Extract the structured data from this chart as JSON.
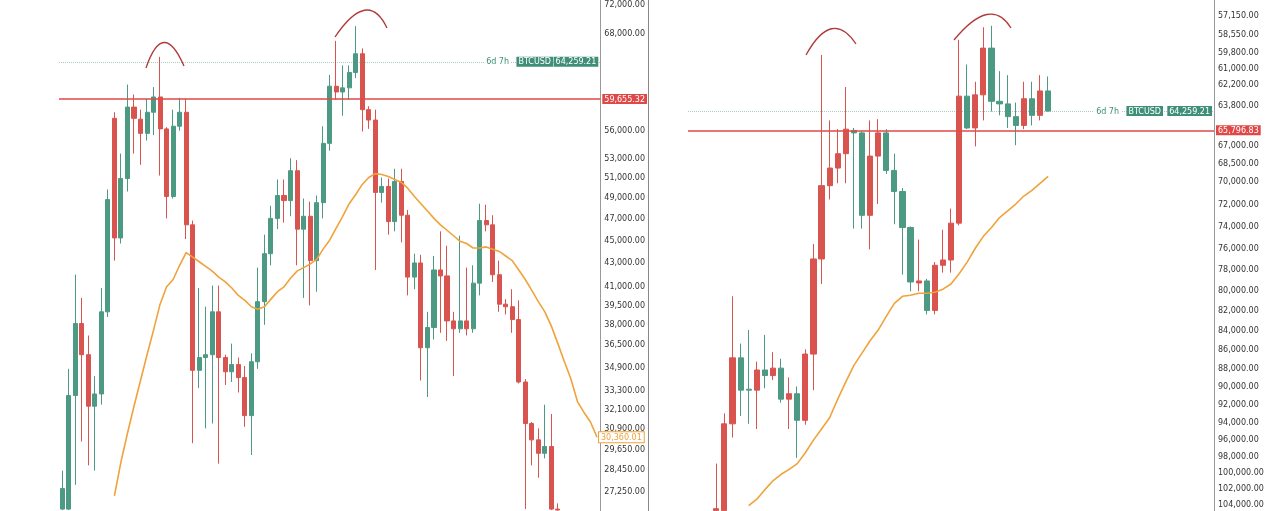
{
  "chart_data": [
    {
      "type": "candlestick",
      "log": true,
      "tick_labels": "y",
      "categories": [
        null,
        null,
        null,
        null,
        null,
        null,
        null,
        null,
        null,
        null,
        null,
        null,
        null,
        null,
        null,
        null,
        null,
        null,
        null,
        null,
        null,
        null,
        null,
        null,
        null,
        null,
        null,
        null,
        null,
        null,
        null,
        null,
        null,
        null,
        null,
        null,
        null,
        null,
        null,
        null,
        null,
        null,
        null,
        null,
        null,
        null,
        null,
        null,
        null,
        null,
        null,
        null,
        null,
        null,
        null,
        null,
        null,
        null,
        null,
        null,
        null,
        null,
        null,
        null,
        null,
        null,
        null,
        null,
        null,
        null,
        null,
        null,
        null,
        null,
        null,
        null,
        null,
        null,
        null,
        null,
        null,
        null,
        null
      ],
      "ohlc": [
        [
          26300,
          28400,
          26250,
          27400
        ],
        [
          26300,
          34800,
          26250,
          33000
        ],
        [
          33000,
          42000,
          27600,
          38100
        ],
        [
          38100,
          40100,
          30100,
          35800
        ],
        [
          35800,
          37200,
          28700,
          32300
        ],
        [
          32300,
          34300,
          28400,
          33100
        ],
        [
          33100,
          40900,
          32400,
          39000
        ],
        [
          39000,
          49800,
          38600,
          48800
        ],
        [
          57400,
          58100,
          43200,
          45200
        ],
        [
          45200,
          53500,
          44700,
          50900
        ],
        [
          50900,
          61400,
          49600,
          58700
        ],
        [
          58700,
          60200,
          53500,
          57400
        ],
        [
          57300,
          58400,
          52300,
          55700
        ],
        [
          55700,
          59700,
          54900,
          58100
        ],
        [
          58100,
          61100,
          55500,
          59900
        ],
        [
          59900,
          64900,
          51200,
          56200
        ],
        [
          56200,
          56400,
          47000,
          49100
        ],
        [
          49100,
          58400,
          48900,
          56500
        ],
        [
          56500,
          59800,
          56000,
          58100
        ],
        [
          58100,
          59700,
          45100,
          46400
        ],
        [
          46400,
          46800,
          30000,
          34700
        ],
        [
          34700,
          40900,
          33500,
          35600
        ],
        [
          35600,
          39400,
          30900,
          35800
        ],
        [
          35800,
          41100,
          31200,
          39000
        ],
        [
          39000,
          41100,
          28800,
          35600
        ],
        [
          35600,
          35800,
          33700,
          34600
        ],
        [
          34600,
          36600,
          33900,
          35100
        ],
        [
          35100,
          35600,
          33200,
          34200
        ],
        [
          34200,
          35000,
          31000,
          31700
        ],
        [
          31700,
          35900,
          29300,
          35300
        ],
        [
          35300,
          42600,
          34800,
          39800
        ],
        [
          39800,
          45500,
          38000,
          43800
        ],
        [
          43800,
          48200,
          42800,
          47000
        ],
        [
          47000,
          50800,
          46000,
          49200
        ],
        [
          49200,
          50800,
          46600,
          48700
        ],
        [
          48700,
          53000,
          47200,
          51700
        ],
        [
          51700,
          52800,
          42800,
          46000
        ],
        [
          46000,
          48900,
          40100,
          47200
        ],
        [
          47200,
          48600,
          39500,
          43200
        ],
        [
          43200,
          49200,
          40600,
          48500
        ],
        [
          48500,
          56500,
          47000,
          54600
        ],
        [
          54600,
          62600,
          53800,
          61200
        ],
        [
          61200,
          67000,
          59600,
          60500
        ],
        [
          60500,
          63800,
          57700,
          61000
        ],
        [
          61000,
          63800,
          59600,
          62900
        ],
        [
          62900,
          69000,
          62200,
          65300
        ],
        [
          65300,
          66000,
          55900,
          58400
        ],
        [
          58400,
          58800,
          56200,
          57200
        ],
        [
          57200,
          58400,
          42400,
          49500
        ],
        [
          49500,
          51000,
          48500,
          50100
        ],
        [
          50100,
          50900,
          45500,
          46700
        ],
        [
          46700,
          51900,
          45800,
          50600
        ],
        [
          50600,
          51900,
          44800,
          47300
        ],
        [
          47300,
          47800,
          40300,
          41800
        ],
        [
          41800,
          43800,
          40800,
          43000
        ],
        [
          43000,
          43700,
          34000,
          36300
        ],
        [
          36300,
          39000,
          32900,
          37800
        ],
        [
          37800,
          43600,
          36900,
          42400
        ],
        [
          42400,
          45800,
          37400,
          41900
        ],
        [
          41900,
          44500,
          36800,
          38300
        ],
        [
          38300,
          39000,
          34300,
          37700
        ],
        [
          37700,
          45400,
          37400,
          38300
        ],
        [
          38300,
          42600,
          37200,
          37700
        ],
        [
          37700,
          42800,
          37400,
          41300
        ],
        [
          41300,
          48400,
          40300,
          46800
        ],
        [
          46800,
          48300,
          45800,
          46400
        ],
        [
          46400,
          47300,
          41400,
          42000
        ],
        [
          42000,
          43200,
          39000,
          39600
        ],
        [
          39600,
          40000,
          38800,
          39400
        ],
        [
          39400,
          40800,
          37400,
          38400
        ],
        [
          38400,
          39900,
          33800,
          33900
        ],
        [
          33900,
          34100,
          26300,
          31200
        ],
        [
          31200,
          31300,
          28700,
          30200
        ],
        [
          30200,
          30900,
          28000,
          29400
        ],
        [
          29400,
          32400,
          29100,
          29800
        ],
        [
          29800,
          31800,
          26250,
          26300
        ],
        [
          26300,
          26600,
          26220,
          26250
        ],
        null,
        null,
        null,
        null,
        null,
        null
      ],
      "colors": [
        "#4c9a84",
        "#4c9a84",
        "#4c9a84",
        "#d9534f",
        "#d9534f",
        "#4c9a84",
        "#4c9a84",
        "#4c9a84",
        "#d9534f",
        "#4c9a84",
        "#4c9a84",
        "#d9534f",
        "#d9534f",
        "#4c9a84",
        "#4c9a84",
        "#d9534f",
        "#d9534f",
        "#4c9a84",
        "#4c9a84",
        "#d9534f",
        "#d9534f",
        "#4c9a84",
        "#4c9a84",
        "#4c9a84",
        "#d9534f",
        "#d9534f",
        "#4c9a84",
        "#d9534f",
        "#d9534f",
        "#4c9a84",
        "#4c9a84",
        "#4c9a84",
        "#4c9a84",
        "#4c9a84",
        "#d9534f",
        "#4c9a84",
        "#d9534f",
        "#4c9a84",
        "#d9534f",
        "#4c9a84",
        "#4c9a84",
        "#4c9a84",
        "#d9534f",
        "#4c9a84",
        "#4c9a84",
        "#4c9a84",
        "#d9534f",
        "#d9534f",
        "#d9534f",
        "#4c9a84",
        "#d9534f",
        "#4c9a84",
        "#d9534f",
        "#d9534f",
        "#4c9a84",
        "#d9534f",
        "#4c9a84",
        "#4c9a84",
        "#d9534f",
        "#d9534f",
        "#d9534f",
        "#4c9a84",
        "#d9534f",
        "#4c9a84",
        "#4c9a84",
        "#d9534f",
        "#d9534f",
        "#d9534f",
        "#d9534f",
        "#d9534f",
        "#d9534f",
        "#d9534f",
        "#d9534f",
        "#d9534f",
        "#4c9a84",
        "#d9534f",
        "#d9534f",
        null,
        null,
        null,
        null,
        null,
        null
      ],
      "series": [
        {
          "type": "line",
          "color": "#f0a23b",
          "values": [
            null,
            null,
            null,
            null,
            null,
            null,
            null,
            null,
            27000,
            28900,
            30600,
            32300,
            34000,
            35800,
            37600,
            39600,
            41000,
            41600,
            42800,
            43900,
            43500,
            43100,
            42700,
            42300,
            41800,
            41400,
            40900,
            40300,
            39900,
            39400,
            39200,
            39400,
            40000,
            40600,
            41000,
            41700,
            42300,
            42600,
            42900,
            43300,
            44200,
            45000,
            46100,
            47200,
            48400,
            49300,
            50300,
            51000,
            51400,
            51300,
            51100,
            50800,
            50500,
            49900,
            49100,
            48400,
            47700,
            47000,
            46400,
            45900,
            45400,
            44900,
            44700,
            44300,
            44300,
            44400,
            44200,
            44000,
            43600,
            43200,
            42400,
            41600,
            40700,
            39800,
            39000,
            37900,
            36600,
            35300,
            34100,
            32600,
            31900,
            31300,
            30360.01
          ],
          "value_labels": [
            null,
            null,
            null,
            null,
            null,
            null,
            null,
            null,
            null,
            null,
            null,
            null,
            null,
            null,
            null,
            null,
            null,
            null,
            null,
            null,
            null,
            null,
            null,
            null,
            null,
            null,
            null,
            null,
            null,
            null,
            null,
            null,
            null,
            null,
            null,
            null,
            null,
            null,
            null,
            null,
            null,
            null,
            null,
            null,
            null,
            null,
            null,
            null,
            null,
            null,
            null,
            null,
            null,
            null,
            null,
            null,
            null,
            null,
            null,
            null,
            null,
            null,
            null,
            null,
            null,
            null,
            null,
            null,
            null,
            null,
            null,
            null,
            null,
            null,
            null,
            null,
            null,
            null,
            null,
            null,
            null,
            null,
            "30,360.01"
          ]
        }
      ],
      "ylim": [
        26200,
        72700
      ],
      "yticks": [
        {
          "value": 72000,
          "label": "72,000.00"
        },
        {
          "value": 68000,
          "label": "68,000.00"
        },
        {
          "value": 56000,
          "label": "56,000.00"
        },
        {
          "value": 53000,
          "label": "53,000.00"
        },
        {
          "value": 51000,
          "label": "51,000.00"
        },
        {
          "value": 49000,
          "label": "49,000.00"
        },
        {
          "value": 47000,
          "label": "47,000.00"
        },
        {
          "value": 45000,
          "label": "45,000.00"
        },
        {
          "value": 43000,
          "label": "43,000.00"
        },
        {
          "value": 41000,
          "label": "41,000.00"
        },
        {
          "value": 39500,
          "label": "39,500.00"
        },
        {
          "value": 38000,
          "label": "38,000.00"
        },
        {
          "value": 36500,
          "label": "36,500.00"
        },
        {
          "value": 34900,
          "label": "34,900.00"
        },
        {
          "value": 33300,
          "label": "33,300.00"
        },
        {
          "value": 32100,
          "label": "32,100.00"
        },
        {
          "value": 30900,
          "label": "30,900.00"
        },
        {
          "value": 29650,
          "label": "29,650.00"
        },
        {
          "value": 28450,
          "label": "28,450.00"
        },
        {
          "value": 27250,
          "label": "27,250.00"
        }
      ],
      "ref_lines": [
        {
          "axis": "y",
          "value": 59655.32,
          "label": "59,655.32",
          "color": "#e04848"
        },
        {
          "axis": "y",
          "value": 64259.21,
          "label": "64,259.21",
          "color": "#3f8f78",
          "line_style": "dotted"
        }
      ],
      "annotations": [
        {
          "text": "BTCUSD",
          "y": 64259.21
        },
        {
          "text": "6d 7h",
          "y": 64259.21
        }
      ]
    },
    {
      "type": "candlestick",
      "log": true,
      "tick_labels": "y",
      "categories": [
        null,
        null,
        null,
        null,
        null,
        null,
        null,
        null,
        null,
        null,
        null,
        null,
        null,
        null,
        null,
        null,
        null,
        null,
        null,
        null,
        null,
        null,
        null,
        null,
        null,
        null,
        null,
        null,
        null,
        null,
        null,
        null,
        null,
        null,
        null,
        null,
        null,
        null,
        null,
        null,
        null,
        null,
        null,
        null,
        null,
        null,
        null,
        null,
        null,
        null,
        null,
        null,
        null,
        null,
        null,
        null,
        null,
        null,
        null,
        null,
        null,
        null,
        null,
        null,
        null
      ],
      "ohlc": [
        null,
        null,
        null,
        [
          104750,
          104790,
          98900,
          104500
        ],
        [
          104750,
          104790,
          93000,
          94200
        ],
        [
          94200,
          95800,
          80600,
          86900
        ],
        [
          86900,
          93300,
          85400,
          90400
        ],
        [
          90300,
          94200,
          84000,
          90400
        ],
        [
          90400,
          94800,
          87300,
          88200
        ],
        [
          88200,
          90200,
          84500,
          88800
        ],
        [
          88800,
          89300,
          86300,
          88000
        ],
        [
          88000,
          91800,
          87000,
          91400
        ],
        [
          91400,
          94800,
          89000,
          90800
        ],
        [
          90800,
          98200,
          90000,
          93800
        ],
        [
          93800,
          94300,
          86000,
          86500
        ],
        [
          86500,
          90400,
          75600,
          77000
        ],
        [
          77000,
          79400,
          60000,
          70400
        ],
        [
          70400,
          71600,
          65000,
          68900
        ],
        [
          68900,
          70200,
          65700,
          67700
        ],
        [
          67700,
          70200,
          62400,
          65700
        ],
        [
          65800,
          74200,
          65600,
          66000
        ],
        [
          66000,
          74200,
          65900,
          73000
        ],
        [
          73000,
          76100,
          65000,
          67900
        ],
        [
          67900,
          72000,
          64900,
          66000
        ],
        [
          66000,
          69400,
          65700,
          69100
        ],
        [
          69100,
          73800,
          67700,
          70900
        ],
        [
          70900,
          78500,
          70600,
          74100
        ],
        [
          74100,
          80100,
          74000,
          79200
        ],
        [
          79300,
          80100,
          75200,
          79100
        ],
        [
          79100,
          82400,
          78900,
          82000
        ],
        [
          82000,
          82400,
          77300,
          77600
        ],
        [
          77600,
          78300,
          74300,
          77100
        ],
        [
          77100,
          78300,
          72400,
          73700
        ],
        [
          73700,
          73900,
          58900,
          63100
        ],
        [
          63100,
          65700,
          60700,
          65600
        ],
        [
          65600,
          67100,
          62000,
          63000
        ],
        [
          63000,
          65000,
          58000,
          59500
        ],
        [
          59500,
          64300,
          57900,
          63500
        ],
        [
          63500,
          64600,
          61200,
          63700
        ],
        [
          63700,
          65600,
          61500,
          64700
        ],
        [
          64700,
          67000,
          63600,
          65400
        ],
        [
          65400,
          65700,
          62000,
          63300
        ],
        [
          63300,
          65400,
          62000,
          64600
        ],
        [
          64600,
          65000,
          61500,
          62700
        ],
        [
          62700,
          64300,
          61600,
          64260
        ],
        null,
        null,
        null,
        null,
        null,
        null,
        null,
        null,
        null,
        null,
        null,
        null,
        null,
        null,
        null,
        null,
        null,
        null,
        null,
        null
      ],
      "colors": [
        null,
        null,
        null,
        "#d9534f",
        "#d9534f",
        "#d9534f",
        "#4c9a84",
        "#4c9a84",
        "#d9534f",
        "#4c9a84",
        "#d9534f",
        "#4c9a84",
        "#d9534f",
        "#4c9a84",
        "#d9534f",
        "#d9534f",
        "#d9534f",
        "#d9534f",
        "#d9534f",
        "#d9534f",
        "#4c9a84",
        "#4c9a84",
        "#d9534f",
        "#d9534f",
        "#4c9a84",
        "#4c9a84",
        "#4c9a84",
        "#4c9a84",
        "#d9534f",
        "#4c9a84",
        "#d9534f",
        "#d9534f",
        "#d9534f",
        "#d9534f",
        "#4c9a84",
        "#d9534f",
        "#d9534f",
        "#4c9a84",
        "#4c9a84",
        "#4c9a84",
        "#4c9a84",
        "#d9534f",
        "#4c9a84",
        "#d9534f",
        "#4c9a84",
        null,
        null,
        null,
        null,
        null,
        null,
        null,
        null,
        null,
        null,
        null,
        null,
        null,
        null,
        null,
        null,
        null,
        null,
        null,
        null
      ],
      "series": [
        {
          "type": "line",
          "color": "#f0a23b",
          "values": [
            null,
            null,
            null,
            null,
            null,
            null,
            null,
            104100,
            103300,
            102100,
            101000,
            100200,
            99600,
            98900,
            97600,
            96100,
            94800,
            93500,
            91400,
            89500,
            87700,
            86400,
            85100,
            84000,
            82600,
            81300,
            80600,
            80500,
            80300,
            80300,
            80200,
            79900,
            79400,
            78400,
            77300,
            76000,
            74900,
            74100,
            73200,
            72600,
            72000,
            71300,
            70800,
            70200,
            69600,
            null,
            null,
            null,
            null,
            null,
            null,
            null,
            null,
            null,
            null,
            null,
            null,
            null,
            null,
            null,
            null,
            null,
            null,
            null,
            null
          ]
        }
      ],
      "ylim": [
        104800,
        56100
      ],
      "yticks": [
        {
          "value": 57150,
          "label": "57,150.00"
        },
        {
          "value": 58550,
          "label": "58,550.00"
        },
        {
          "value": 59800,
          "label": "59,800.00"
        },
        {
          "value": 61000,
          "label": "61,000.00"
        },
        {
          "value": 62200,
          "label": "62,200.00"
        },
        {
          "value": 63800,
          "label": "63,800.00"
        },
        {
          "value": 67000,
          "label": "67,000.00"
        },
        {
          "value": 68500,
          "label": "68,500.00"
        },
        {
          "value": 70000,
          "label": "70,000.00"
        },
        {
          "value": 72000,
          "label": "72,000.00"
        },
        {
          "value": 74000,
          "label": "74,000.00"
        },
        {
          "value": 76000,
          "label": "76,000.00"
        },
        {
          "value": 78000,
          "label": "78,000.00"
        },
        {
          "value": 80000,
          "label": "80,000.00"
        },
        {
          "value": 82000,
          "label": "82,000.00"
        },
        {
          "value": 84000,
          "label": "84,000.00"
        },
        {
          "value": 86000,
          "label": "86,000.00"
        },
        {
          "value": 88000,
          "label": "88,000.00"
        },
        {
          "value": 90000,
          "label": "90,000.00"
        },
        {
          "value": 92000,
          "label": "92,000.00"
        },
        {
          "value": 94000,
          "label": "94,000.00"
        },
        {
          "value": 96000,
          "label": "96,000.00"
        },
        {
          "value": 98000,
          "label": "98,000.00"
        },
        {
          "value": 100000,
          "label": "100,000.00"
        },
        {
          "value": 102000,
          "label": "102,000.00"
        },
        {
          "value": 104000,
          "label": "104,000.00"
        }
      ],
      "ref_lines": [
        {
          "axis": "y",
          "value": 65796.83,
          "label": "65,796.83",
          "color": "#e04848"
        },
        {
          "axis": "y",
          "value": 64259.21,
          "label": "64,259.21",
          "color": "#3f8f78",
          "line_style": "dotted"
        }
      ],
      "annotations": [
        {
          "text": "BTCUSD",
          "y": 64259.21
        },
        {
          "text": "6d 7h",
          "y": 64259.21
        }
      ]
    }
  ]
}
